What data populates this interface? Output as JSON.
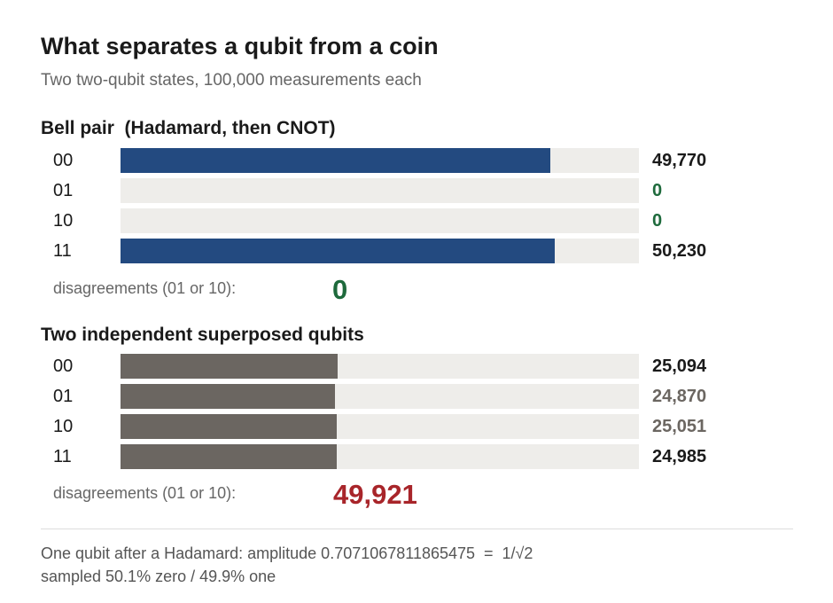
{
  "header": {
    "title": "What separates a qubit from a coin",
    "subtitle": "Two two-qubit states, 100,000 measurements each"
  },
  "colors": {
    "bell_bar": "#234a80",
    "independent_bar": "#6b6661",
    "track": "#eeedea",
    "zero_value": "#1e6a3c",
    "nonzero_disagreement": "#a8252a",
    "muted_count": "#6b6661",
    "strong_count": "#1a1a1a"
  },
  "chart_data": [
    {
      "type": "bar",
      "orientation": "horizontal",
      "title": "Bell pair  (Hadamard, then CNOT)",
      "categories": [
        "00",
        "01",
        "10",
        "11"
      ],
      "values": [
        49770,
        0,
        0,
        50230
      ],
      "value_labels": [
        "49,770",
        "0",
        "0",
        "50,230"
      ],
      "total": 100000,
      "disagreement_label": "disagreements (01 or 10):",
      "disagreement_value": "0"
    },
    {
      "type": "bar",
      "orientation": "horizontal",
      "title": "Two independent superposed qubits",
      "categories": [
        "00",
        "01",
        "10",
        "11"
      ],
      "values": [
        25094,
        24870,
        25051,
        24985
      ],
      "value_labels": [
        "25,094",
        "24,870",
        "25,051",
        "24,985"
      ],
      "total": 100000,
      "disagreement_label": "disagreements (01 or 10):",
      "disagreement_value": "49,921"
    }
  ],
  "footer": {
    "line1": "One qubit after a Hadamard: amplitude 0.7071067811865475  =  1/√2",
    "line2": "sampled 50.1% zero / 49.9% one"
  }
}
